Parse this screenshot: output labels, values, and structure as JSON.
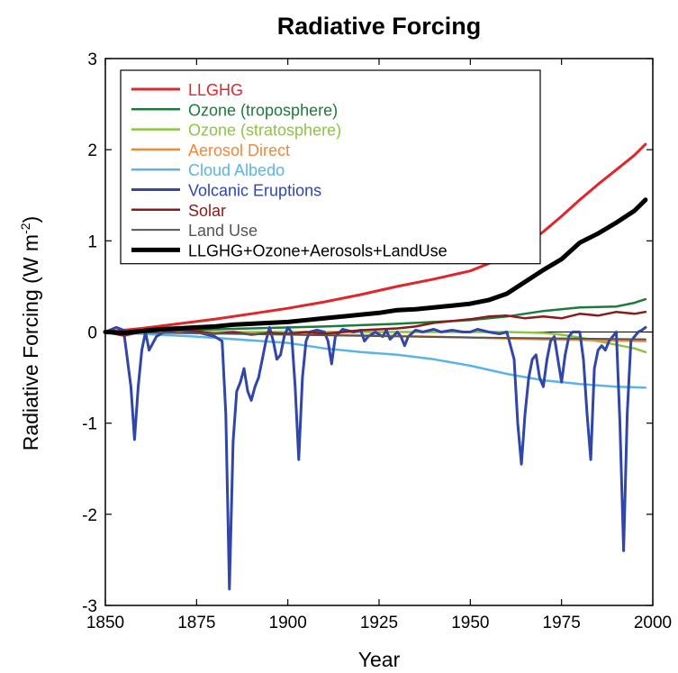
{
  "chart_data": {
    "type": "line",
    "title": "Radiative Forcing",
    "xlabel": "Year",
    "ylabel": "Radiative Forcing (W m",
    "ylabel_sup": "-2",
    "ylabel_close": ")",
    "xlim": [
      1850,
      2000
    ],
    "ylim": [
      -3,
      3
    ],
    "xticks": [
      1850,
      1875,
      1900,
      1925,
      1950,
      1975,
      2000
    ],
    "yticks": [
      -3,
      -2,
      -1,
      0,
      1,
      2,
      3
    ],
    "grid": false,
    "legend_position": "top-left",
    "series": [
      {
        "name": "LLGHG",
        "color": "#e0252b",
        "width": 3,
        "points": [
          [
            1850,
            0
          ],
          [
            1860,
            0.04
          ],
          [
            1870,
            0.09
          ],
          [
            1880,
            0.14
          ],
          [
            1890,
            0.2
          ],
          [
            1900,
            0.26
          ],
          [
            1910,
            0.33
          ],
          [
            1920,
            0.41
          ],
          [
            1930,
            0.5
          ],
          [
            1940,
            0.58
          ],
          [
            1950,
            0.67
          ],
          [
            1960,
            0.83
          ],
          [
            1965,
            0.95
          ],
          [
            1970,
            1.1
          ],
          [
            1975,
            1.27
          ],
          [
            1980,
            1.45
          ],
          [
            1985,
            1.62
          ],
          [
            1990,
            1.78
          ],
          [
            1995,
            1.94
          ],
          [
            1998,
            2.06
          ]
        ]
      },
      {
        "name": "Ozone (troposphere)",
        "color": "#1b7b3a",
        "width": 2.5,
        "points": [
          [
            1850,
            0
          ],
          [
            1870,
            0.02
          ],
          [
            1890,
            0.04
          ],
          [
            1910,
            0.06
          ],
          [
            1930,
            0.09
          ],
          [
            1950,
            0.13
          ],
          [
            1960,
            0.17
          ],
          [
            1970,
            0.23
          ],
          [
            1980,
            0.27
          ],
          [
            1990,
            0.28
          ],
          [
            1995,
            0.32
          ],
          [
            1998,
            0.36
          ]
        ]
      },
      {
        "name": "Ozone (stratosphere)",
        "color": "#8cc63f",
        "width": 2.5,
        "points": [
          [
            1850,
            0
          ],
          [
            1960,
            0
          ],
          [
            1970,
            -0.01
          ],
          [
            1975,
            -0.03
          ],
          [
            1980,
            -0.06
          ],
          [
            1985,
            -0.1
          ],
          [
            1990,
            -0.14
          ],
          [
            1995,
            -0.18
          ],
          [
            1998,
            -0.22
          ]
        ]
      },
      {
        "name": "Aerosol Direct",
        "color": "#f0883a",
        "width": 2.5,
        "points": [
          [
            1850,
            0
          ],
          [
            1875,
            -0.01
          ],
          [
            1900,
            -0.02
          ],
          [
            1925,
            -0.04
          ],
          [
            1950,
            -0.06
          ],
          [
            1970,
            -0.08
          ],
          [
            1985,
            -0.09
          ],
          [
            1998,
            -0.1
          ]
        ]
      },
      {
        "name": "Cloud Albedo",
        "color": "#5ab4e8",
        "width": 2.5,
        "points": [
          [
            1850,
            0
          ],
          [
            1875,
            -0.05
          ],
          [
            1900,
            -0.12
          ],
          [
            1910,
            -0.18
          ],
          [
            1920,
            -0.22
          ],
          [
            1930,
            -0.25
          ],
          [
            1940,
            -0.3
          ],
          [
            1950,
            -0.37
          ],
          [
            1960,
            -0.46
          ],
          [
            1970,
            -0.53
          ],
          [
            1980,
            -0.57
          ],
          [
            1990,
            -0.6
          ],
          [
            1998,
            -0.61
          ]
        ]
      },
      {
        "name": "Volcanic Eruptions",
        "color": "#3046a8",
        "width": 3,
        "points": [
          [
            1850,
            0
          ],
          [
            1853,
            0.05
          ],
          [
            1855,
            0.02
          ],
          [
            1857,
            -0.6
          ],
          [
            1858,
            -1.18
          ],
          [
            1859,
            -0.6
          ],
          [
            1860,
            -0.2
          ],
          [
            1861,
            0
          ],
          [
            1862,
            -0.2
          ],
          [
            1864,
            -0.05
          ],
          [
            1866,
            0
          ],
          [
            1870,
            0.02
          ],
          [
            1875,
            0
          ],
          [
            1880,
            -0.05
          ],
          [
            1882,
            -0.1
          ],
          [
            1883,
            -0.9
          ],
          [
            1884,
            -2.82
          ],
          [
            1885,
            -1.2
          ],
          [
            1886,
            -0.65
          ],
          [
            1887,
            -0.55
          ],
          [
            1888,
            -0.4
          ],
          [
            1889,
            -0.65
          ],
          [
            1890,
            -0.75
          ],
          [
            1891,
            -0.6
          ],
          [
            1892,
            -0.5
          ],
          [
            1893,
            -0.3
          ],
          [
            1894,
            -0.1
          ],
          [
            1895,
            0.05
          ],
          [
            1896,
            -0.1
          ],
          [
            1897,
            -0.3
          ],
          [
            1898,
            -0.25
          ],
          [
            1899,
            -0.05
          ],
          [
            1900,
            0.05
          ],
          [
            1901,
            0
          ],
          [
            1902,
            -0.6
          ],
          [
            1903,
            -1.4
          ],
          [
            1904,
            -0.5
          ],
          [
            1905,
            -0.1
          ],
          [
            1906,
            0
          ],
          [
            1908,
            0.02
          ],
          [
            1910,
            0
          ],
          [
            1911,
            -0.1
          ],
          [
            1912,
            -0.35
          ],
          [
            1913,
            -0.05
          ],
          [
            1915,
            0.03
          ],
          [
            1918,
            0
          ],
          [
            1920,
            0.02
          ],
          [
            1921,
            -0.1
          ],
          [
            1922,
            -0.05
          ],
          [
            1924,
            0
          ],
          [
            1926,
            -0.05
          ],
          [
            1927,
            0.02
          ],
          [
            1928,
            -0.08
          ],
          [
            1930,
            0
          ],
          [
            1931,
            -0.05
          ],
          [
            1932,
            -0.15
          ],
          [
            1933,
            -0.05
          ],
          [
            1935,
            0.02
          ],
          [
            1937,
            0
          ],
          [
            1940,
            0.03
          ],
          [
            1942,
            0
          ],
          [
            1945,
            0.02
          ],
          [
            1948,
            0
          ],
          [
            1950,
            0
          ],
          [
            1952,
            0.03
          ],
          [
            1955,
            0
          ],
          [
            1958,
            -0.02
          ],
          [
            1960,
            0
          ],
          [
            1962,
            -0.3
          ],
          [
            1963,
            -1.0
          ],
          [
            1964,
            -1.45
          ],
          [
            1965,
            -0.9
          ],
          [
            1966,
            -0.5
          ],
          [
            1967,
            -0.3
          ],
          [
            1968,
            -0.25
          ],
          [
            1969,
            -0.5
          ],
          [
            1970,
            -0.6
          ],
          [
            1971,
            -0.3
          ],
          [
            1972,
            -0.1
          ],
          [
            1973,
            -0.05
          ],
          [
            1974,
            -0.3
          ],
          [
            1975,
            -0.55
          ],
          [
            1976,
            -0.25
          ],
          [
            1977,
            -0.05
          ],
          [
            1978,
            0
          ],
          [
            1980,
            0
          ],
          [
            1981,
            -0.3
          ],
          [
            1982,
            -0.9
          ],
          [
            1983,
            -1.4
          ],
          [
            1984,
            -0.4
          ],
          [
            1985,
            -0.2
          ],
          [
            1986,
            -0.15
          ],
          [
            1987,
            -0.2
          ],
          [
            1988,
            -0.1
          ],
          [
            1989,
            -0.05
          ],
          [
            1990,
            0
          ],
          [
            1991,
            -1.0
          ],
          [
            1992,
            -2.4
          ],
          [
            1993,
            -0.9
          ],
          [
            1994,
            -0.1
          ],
          [
            1995,
            -0.05
          ],
          [
            1996,
            0
          ],
          [
            1997,
            0.02
          ],
          [
            1998,
            0.05
          ]
        ]
      },
      {
        "name": "Solar",
        "color": "#8b1a1a",
        "width": 2.5,
        "points": [
          [
            1850,
            0
          ],
          [
            1855,
            -0.04
          ],
          [
            1860,
            0
          ],
          [
            1865,
            0.02
          ],
          [
            1870,
            0.04
          ],
          [
            1875,
            0.01
          ],
          [
            1880,
            -0.02
          ],
          [
            1885,
            0
          ],
          [
            1890,
            -0.03
          ],
          [
            1895,
            -0.01
          ],
          [
            1900,
            -0.02
          ],
          [
            1905,
            0
          ],
          [
            1910,
            -0.02
          ],
          [
            1915,
            0
          ],
          [
            1920,
            0.02
          ],
          [
            1925,
            0.03
          ],
          [
            1930,
            0.04
          ],
          [
            1935,
            0.06
          ],
          [
            1940,
            0.1
          ],
          [
            1945,
            0.12
          ],
          [
            1950,
            0.14
          ],
          [
            1955,
            0.17
          ],
          [
            1960,
            0.18
          ],
          [
            1965,
            0.15
          ],
          [
            1970,
            0.17
          ],
          [
            1975,
            0.15
          ],
          [
            1980,
            0.2
          ],
          [
            1985,
            0.18
          ],
          [
            1990,
            0.22
          ],
          [
            1995,
            0.2
          ],
          [
            1998,
            0.22
          ]
        ]
      },
      {
        "name": "Land Use",
        "color": "#555555",
        "width": 2,
        "points": [
          [
            1850,
            0
          ],
          [
            1900,
            -0.03
          ],
          [
            1950,
            -0.06
          ],
          [
            1998,
            -0.08
          ]
        ]
      },
      {
        "name": "LLGHG+Ozone+Aerosols+LandUse",
        "color": "#000000",
        "width": 5,
        "points": [
          [
            1850,
            0
          ],
          [
            1855,
            -0.01
          ],
          [
            1860,
            0.01
          ],
          [
            1865,
            0.03
          ],
          [
            1870,
            0.04
          ],
          [
            1875,
            0.05
          ],
          [
            1880,
            0.06
          ],
          [
            1885,
            0.08
          ],
          [
            1890,
            0.09
          ],
          [
            1895,
            0.1
          ],
          [
            1900,
            0.11
          ],
          [
            1905,
            0.13
          ],
          [
            1910,
            0.15
          ],
          [
            1915,
            0.17
          ],
          [
            1920,
            0.19
          ],
          [
            1925,
            0.21
          ],
          [
            1930,
            0.24
          ],
          [
            1935,
            0.25
          ],
          [
            1940,
            0.27
          ],
          [
            1945,
            0.29
          ],
          [
            1950,
            0.31
          ],
          [
            1955,
            0.35
          ],
          [
            1960,
            0.42
          ],
          [
            1965,
            0.55
          ],
          [
            1970,
            0.68
          ],
          [
            1975,
            0.8
          ],
          [
            1980,
            0.98
          ],
          [
            1985,
            1.08
          ],
          [
            1990,
            1.2
          ],
          [
            1995,
            1.33
          ],
          [
            1998,
            1.45
          ]
        ]
      }
    ]
  }
}
